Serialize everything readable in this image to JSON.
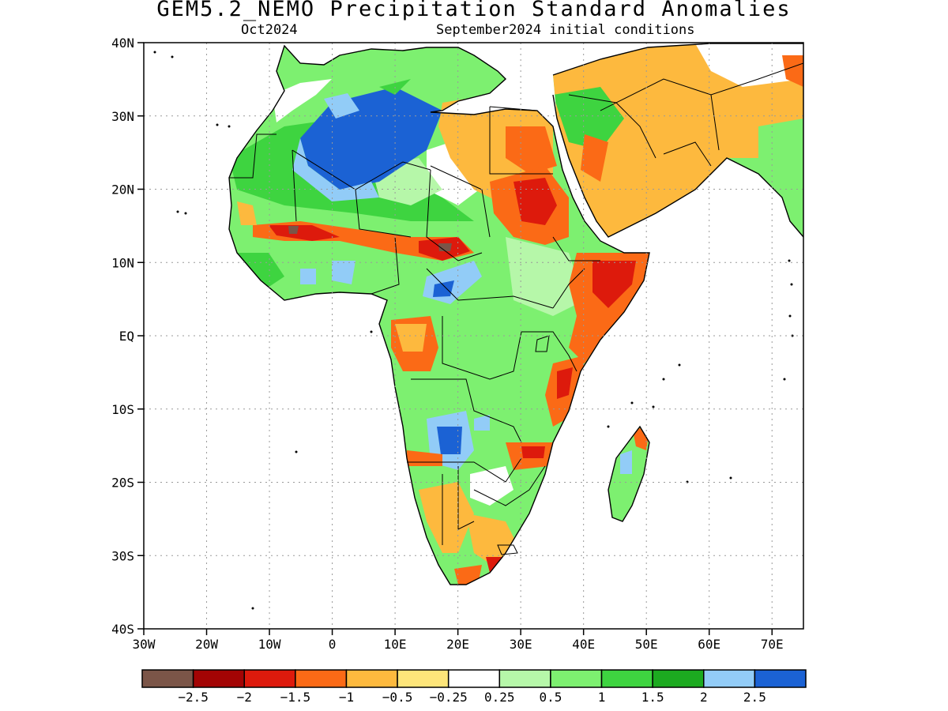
{
  "title": "GEM5.2_NEMO Precipitation Standard Anomalies",
  "valid_month": "Oct2024",
  "initial_conditions": "September2024 initial conditions",
  "lat_labels": [
    "40N",
    "30N",
    "20N",
    "10N",
    "EQ",
    "10S",
    "20S",
    "30S",
    "40S"
  ],
  "lon_labels": [
    "30W",
    "20W",
    "10W",
    "0",
    "10E",
    "20E",
    "30E",
    "40E",
    "50E",
    "60E",
    "70E"
  ],
  "legend": {
    "colors": [
      "#7b5548",
      "#a30404",
      "#dd1a0c",
      "#fb6a16",
      "#fdb93e",
      "#fde57a",
      "#ffffff",
      "#b6f7a9",
      "#7df070",
      "#3ed440",
      "#1caa20",
      "#92ccf7",
      "#1b62d4"
    ],
    "labels": [
      "−2.5",
      "−2",
      "−1.5",
      "−1",
      "−0.5",
      "−0.25",
      "0.25",
      "0.5",
      "1",
      "1.5",
      "2",
      "2.5"
    ]
  },
  "map": {
    "lat_range": [
      -40,
      40
    ],
    "lon_range": [
      -30,
      75
    ],
    "grid": true
  }
}
